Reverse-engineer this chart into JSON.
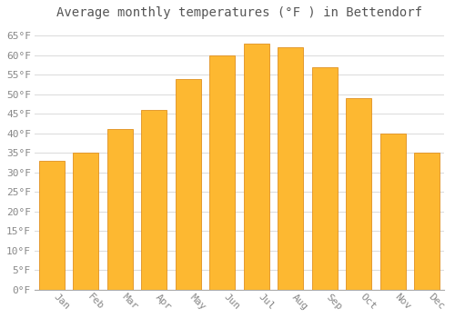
{
  "months": [
    "Jan",
    "Feb",
    "Mar",
    "Apr",
    "May",
    "Jun",
    "Jul",
    "Aug",
    "Sep",
    "Oct",
    "Nov",
    "Dec"
  ],
  "temperatures": [
    33,
    35,
    41,
    46,
    54,
    60,
    63,
    62,
    57,
    49,
    40,
    35
  ],
  "bar_color": "#FDB831",
  "bar_edge_color": "#E09020",
  "title": "Average monthly temperatures (°F ) in Bettendorf",
  "ylim": [
    0,
    68
  ],
  "yticks": [
    0,
    5,
    10,
    15,
    20,
    25,
    30,
    35,
    40,
    45,
    50,
    55,
    60,
    65
  ],
  "ytick_labels": [
    "0°F",
    "5°F",
    "10°F",
    "15°F",
    "20°F",
    "25°F",
    "30°F",
    "35°F",
    "40°F",
    "45°F",
    "50°F",
    "55°F",
    "60°F",
    "65°F"
  ],
  "background_color": "#ffffff",
  "grid_color": "#dddddd",
  "title_fontsize": 10,
  "tick_fontsize": 8,
  "font_family": "monospace",
  "tick_color": "#888888",
  "title_color": "#555555"
}
